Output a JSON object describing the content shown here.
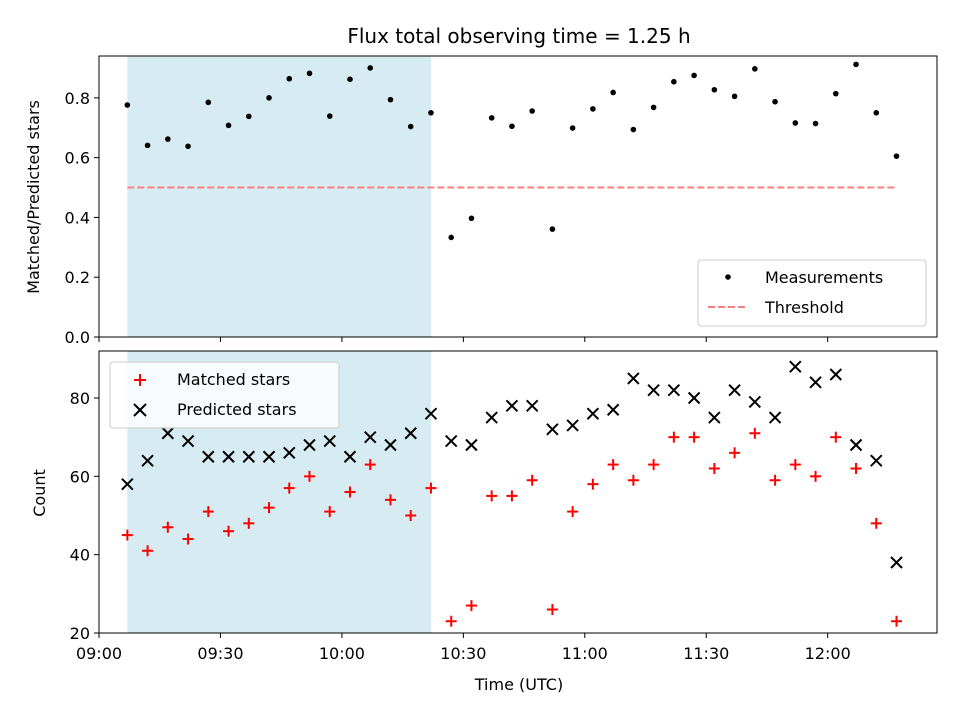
{
  "chart_data": [
    {
      "type": "scatter",
      "title": "Flux total observing time = 1.25 h",
      "xlabel": "",
      "ylabel": "Matched/Predicted stars",
      "ylim": [
        0.0,
        0.94
      ],
      "yticks": [
        "0.0",
        "0.2",
        "0.4",
        "0.6",
        "0.8"
      ],
      "ytick_values": [
        0.0,
        0.2,
        0.4,
        0.6,
        0.8
      ],
      "highlight_span": [
        "09:07",
        "10:22"
      ],
      "highlight_color": "#add8e6",
      "legend_position": "lower right",
      "series": [
        {
          "name": "Measurements",
          "marker": "dot",
          "color": "#000000",
          "x": [
            "09:07",
            "09:12",
            "09:17",
            "09:22",
            "09:27",
            "09:32",
            "09:37",
            "09:42",
            "09:47",
            "09:52",
            "09:57",
            "10:02",
            "10:07",
            "10:12",
            "10:17",
            "10:22",
            "10:27",
            "10:32",
            "10:37",
            "10:42",
            "10:47",
            "10:52",
            "10:57",
            "11:02",
            "11:07",
            "11:12",
            "11:17",
            "11:22",
            "11:27",
            "11:32",
            "11:37",
            "11:42",
            "11:47",
            "11:52",
            "11:57",
            "12:02",
            "12:07",
            "12:12",
            "12:17"
          ],
          "values": [
            0.776,
            0.641,
            0.662,
            0.638,
            0.785,
            0.708,
            0.738,
            0.8,
            0.864,
            0.882,
            0.739,
            0.862,
            0.9,
            0.794,
            0.704,
            0.75,
            0.333,
            0.397,
            0.733,
            0.705,
            0.756,
            0.361,
            0.699,
            0.763,
            0.818,
            0.694,
            0.768,
            0.854,
            0.875,
            0.827,
            0.805,
            0.897,
            0.787,
            0.716,
            0.714,
            0.814,
            0.912,
            0.75,
            0.605
          ]
        },
        {
          "name": "Threshold",
          "style": "dashed",
          "color": "#ff7f7f",
          "x": [
            "09:07",
            "12:17"
          ],
          "values": [
            0.5,
            0.5
          ]
        }
      ]
    },
    {
      "type": "scatter",
      "title": "",
      "xlabel": "Time (UTC)",
      "ylabel": "Count",
      "ylim": [
        20,
        92
      ],
      "yticks": [
        "20",
        "40",
        "60",
        "80"
      ],
      "ytick_values": [
        20,
        40,
        60,
        80
      ],
      "xlim": [
        "09:00",
        "12:27"
      ],
      "xticks": [
        "09:00",
        "09:30",
        "10:00",
        "10:30",
        "11:00",
        "11:30",
        "12:00"
      ],
      "highlight_span": [
        "09:07",
        "10:22"
      ],
      "highlight_color": "#add8e6",
      "legend_position": "upper left",
      "series": [
        {
          "name": "Matched stars",
          "marker": "plus",
          "color": "#ff0000",
          "x": [
            "09:07",
            "09:12",
            "09:17",
            "09:22",
            "09:27",
            "09:32",
            "09:37",
            "09:42",
            "09:47",
            "09:52",
            "09:57",
            "10:02",
            "10:07",
            "10:12",
            "10:17",
            "10:22",
            "10:27",
            "10:32",
            "10:37",
            "10:42",
            "10:47",
            "10:52",
            "10:57",
            "11:02",
            "11:07",
            "11:12",
            "11:17",
            "11:22",
            "11:27",
            "11:32",
            "11:37",
            "11:42",
            "11:47",
            "11:52",
            "11:57",
            "12:02",
            "12:07",
            "12:12",
            "12:17"
          ],
          "values": [
            45,
            41,
            47,
            44,
            51,
            46,
            48,
            52,
            57,
            60,
            51,
            56,
            63,
            54,
            50,
            57,
            23,
            27,
            55,
            55,
            59,
            26,
            51,
            58,
            63,
            59,
            63,
            70,
            70,
            62,
            66,
            71,
            59,
            63,
            60,
            70,
            62,
            48,
            23
          ]
        },
        {
          "name": "Predicted stars",
          "marker": "x",
          "color": "#000000",
          "x": [
            "09:07",
            "09:12",
            "09:17",
            "09:22",
            "09:27",
            "09:32",
            "09:37",
            "09:42",
            "09:47",
            "09:52",
            "09:57",
            "10:02",
            "10:07",
            "10:12",
            "10:17",
            "10:22",
            "10:27",
            "10:32",
            "10:37",
            "10:42",
            "10:47",
            "10:52",
            "10:57",
            "11:02",
            "11:07",
            "11:12",
            "11:17",
            "11:22",
            "11:27",
            "11:32",
            "11:37",
            "11:42",
            "11:47",
            "11:52",
            "11:57",
            "12:02",
            "12:07",
            "12:12",
            "12:17"
          ],
          "values": [
            58,
            64,
            71,
            69,
            65,
            65,
            65,
            65,
            66,
            68,
            69,
            65,
            70,
            68,
            71,
            76,
            69,
            68,
            75,
            78,
            78,
            72,
            73,
            76,
            77,
            85,
            82,
            82,
            80,
            75,
            82,
            79,
            75,
            88,
            84,
            86,
            68,
            64,
            38
          ]
        }
      ]
    }
  ]
}
